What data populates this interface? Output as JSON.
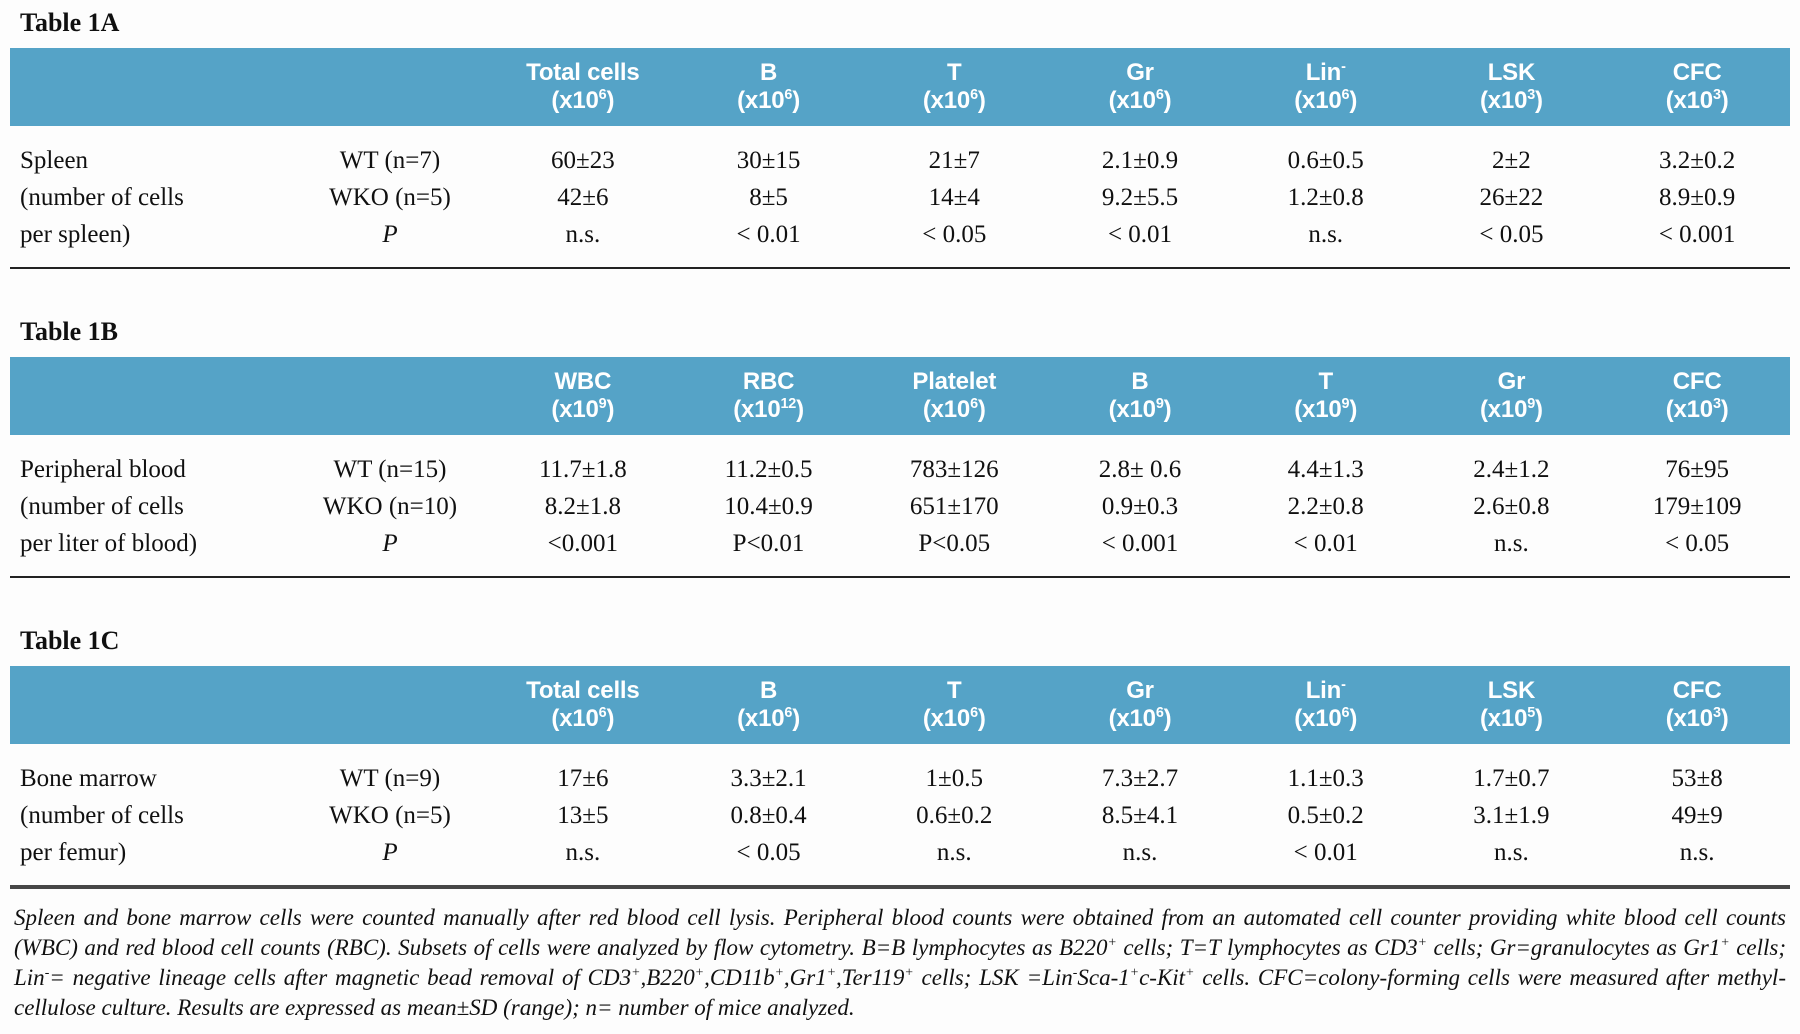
{
  "colors": {
    "header_bg": "#55a3c7",
    "header_text": "#ffffff",
    "body_text": "#101010",
    "thin_rule": "#222222",
    "thick_rule": "#474747"
  },
  "tables": [
    {
      "id": "1A",
      "title": "Table 1A",
      "columns": [
        {
          "label": "Total cells",
          "sup": "",
          "unit": "x10",
          "unit_sup": "6"
        },
        {
          "label": "B",
          "sup": "",
          "unit": "x10",
          "unit_sup": "6"
        },
        {
          "label": "T",
          "sup": "",
          "unit": "x10",
          "unit_sup": "6"
        },
        {
          "label": "Gr",
          "sup": "",
          "unit": "x10",
          "unit_sup": "6"
        },
        {
          "label": "Lin",
          "sup": "-",
          "unit": "x10",
          "unit_sup": "6"
        },
        {
          "label": "LSK",
          "sup": "",
          "unit": "x10",
          "unit_sup": "3"
        },
        {
          "label": "CFC",
          "sup": "",
          "unit": "x10",
          "unit_sup": "3"
        }
      ],
      "row_label_lines": [
        "Spleen",
        "(number of cells",
        "per spleen)"
      ],
      "rows": [
        {
          "group": "WT (n=7)",
          "italic": false,
          "values": [
            "60±23",
            "30±15",
            "21±7",
            "2.1±0.9",
            "0.6±0.5",
            "2±2",
            "3.2±0.2"
          ]
        },
        {
          "group": "WKO (n=5)",
          "italic": false,
          "values": [
            "42±6",
            "8±5",
            "14±4",
            "9.2±5.5",
            "1.2±0.8",
            "26±22",
            "8.9±0.9"
          ]
        },
        {
          "group": "P",
          "italic": true,
          "values": [
            "n.s.",
            "< 0.01",
            "< 0.05",
            "< 0.01",
            "n.s.",
            "< 0.05",
            "< 0.001"
          ]
        }
      ]
    },
    {
      "id": "1B",
      "title": "Table 1B",
      "columns": [
        {
          "label": "WBC",
          "sup": "",
          "unit": "x10",
          "unit_sup": "9"
        },
        {
          "label": "RBC",
          "sup": "",
          "unit": "x10",
          "unit_sup": "12"
        },
        {
          "label": "Platelet",
          "sup": "",
          "unit": "x10",
          "unit_sup": "6"
        },
        {
          "label": "B",
          "sup": "",
          "unit": "x10",
          "unit_sup": "9"
        },
        {
          "label": "T",
          "sup": "",
          "unit": "x10",
          "unit_sup": "9"
        },
        {
          "label": "Gr",
          "sup": "",
          "unit": "x10",
          "unit_sup": "9"
        },
        {
          "label": "CFC",
          "sup": "",
          "unit": "x10",
          "unit_sup": "3"
        }
      ],
      "row_label_lines": [
        "Peripheral blood",
        "(number of cells",
        "per liter of blood)"
      ],
      "rows": [
        {
          "group": "WT (n=15)",
          "italic": false,
          "values": [
            "11.7±1.8",
            "11.2±0.5",
            "783±126",
            "2.8± 0.6",
            "4.4±1.3",
            "2.4±1.2",
            "76±95"
          ]
        },
        {
          "group": "WKO (n=10)",
          "italic": false,
          "values": [
            "8.2±1.8",
            "10.4±0.9",
            "651±170",
            "0.9±0.3",
            "2.2±0.8",
            "2.6±0.8",
            "179±109"
          ]
        },
        {
          "group": "P",
          "italic": true,
          "values": [
            "<0.001",
            "P<0.01",
            "P<0.05",
            "< 0.001",
            "< 0.01",
            "n.s.",
            "< 0.05"
          ]
        }
      ]
    },
    {
      "id": "1C",
      "title": "Table 1C",
      "columns": [
        {
          "label": "Total cells",
          "sup": "",
          "unit": "x10",
          "unit_sup": "6"
        },
        {
          "label": "B",
          "sup": "",
          "unit": "x10",
          "unit_sup": "6"
        },
        {
          "label": "T",
          "sup": "",
          "unit": "x10",
          "unit_sup": "6"
        },
        {
          "label": "Gr",
          "sup": "",
          "unit": "x10",
          "unit_sup": "6"
        },
        {
          "label": "Lin",
          "sup": "-",
          "unit": "x10",
          "unit_sup": "6"
        },
        {
          "label": "LSK",
          "sup": "",
          "unit": "x10",
          "unit_sup": "5"
        },
        {
          "label": "CFC",
          "sup": "",
          "unit": "x10",
          "unit_sup": "3"
        }
      ],
      "row_label_lines": [
        "Bone marrow",
        "(number of cells",
        "per femur)"
      ],
      "rows": [
        {
          "group": "WT (n=9)",
          "italic": false,
          "values": [
            "17±6",
            "3.3±2.1",
            "1±0.5",
            "7.3±2.7",
            "1.1±0.3",
            "1.7±0.7",
            "53±8"
          ]
        },
        {
          "group": "WKO (n=5)",
          "italic": false,
          "values": [
            "13±5",
            "0.8±0.4",
            "0.6±0.2",
            "8.5±4.1",
            "0.5±0.2",
            "3.1±1.9",
            "49±9"
          ]
        },
        {
          "group": "P",
          "italic": true,
          "values": [
            "n.s.",
            "< 0.05",
            "n.s.",
            "n.s.",
            "< 0.01",
            "n.s.",
            "n.s."
          ]
        }
      ]
    }
  ],
  "footnote_segments": [
    {
      "text": "Spleen and bone marrow cells were counted manually after red blood cell lysis.  Peripheral blood counts were obtained from an automated cell counter providing white blood cell counts (WBC) and red blood cell counts (RBC).  Subsets of cells were analyzed by flow cytometry. B=B lymphocytes as B220"
    },
    {
      "sup": "+"
    },
    {
      "text": " cells; T=T lymphocytes as CD3"
    },
    {
      "sup": "+"
    },
    {
      "text": " cells; Gr=granulocytes as Gr1"
    },
    {
      "sup": "+"
    },
    {
      "text": " cells; Lin"
    },
    {
      "sup": "-"
    },
    {
      "text": "= negative lineage cells after magnetic bead removal of  CD3"
    },
    {
      "sup": "+"
    },
    {
      "text": ",B220"
    },
    {
      "sup": "+"
    },
    {
      "text": ",CD11b"
    },
    {
      "sup": "+"
    },
    {
      "text": ",Gr1"
    },
    {
      "sup": "+"
    },
    {
      "text": ",Ter119"
    },
    {
      "sup": "+"
    },
    {
      "text": " cells; LSK =Lin"
    },
    {
      "sup": "-"
    },
    {
      "text": "Sca-1"
    },
    {
      "sup": "+"
    },
    {
      "text": "c-Kit"
    },
    {
      "sup": "+"
    },
    {
      "text": " cells. CFC=colony-forming cells were measured after methyl-cellulose culture. Results are expressed as mean±SD (range); n= number of mice analyzed."
    }
  ]
}
